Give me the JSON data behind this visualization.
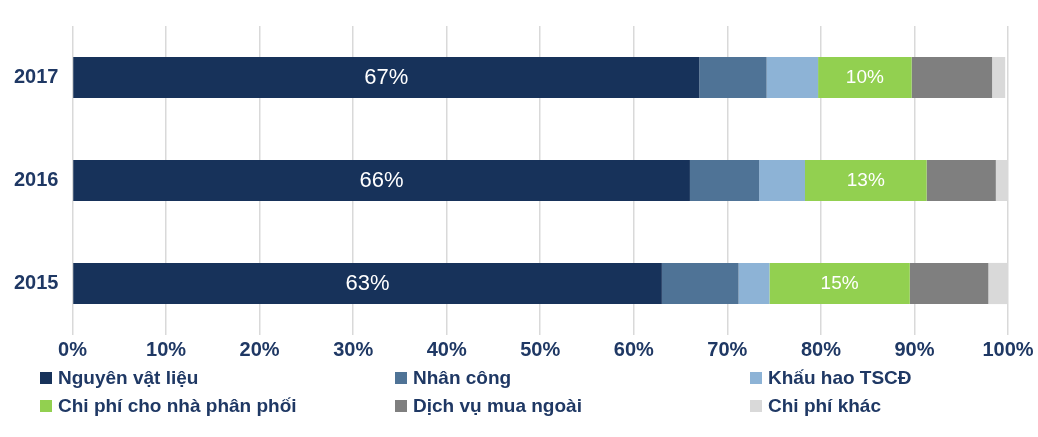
{
  "chart_data": {
    "type": "bar",
    "orientation": "horizontal",
    "stacked": true,
    "categories": [
      "2017",
      "2016",
      "2015"
    ],
    "series": [
      {
        "name": "Nguyên vật liệu",
        "color": "#17325a",
        "values": [
          67,
          66,
          63
        ],
        "value_labels": [
          "67%",
          "66%",
          "63%"
        ]
      },
      {
        "name": "Nhân công",
        "color": "#4f7396",
        "values": [
          7.2,
          7.4,
          8.2
        ]
      },
      {
        "name": "Khấu hao TSCĐ",
        "color": "#8db3d6",
        "values": [
          5.5,
          4.9,
          3.3
        ]
      },
      {
        "name": "Chi phí cho nhà phân phối",
        "color": "#92d050",
        "values": [
          10,
          13,
          15
        ],
        "value_labels": [
          "10%",
          "13%",
          "15%"
        ]
      },
      {
        "name": "Dịch vụ mua ngoài",
        "color": "#7f7f7f",
        "values": [
          8.6,
          7.4,
          8.4
        ]
      },
      {
        "name": "Chi phí khác",
        "color": "#d9d9d9",
        "values": [
          1.4,
          1.3,
          2.1
        ]
      }
    ],
    "xlim": [
      0,
      100
    ],
    "xticks": [
      {
        "value": 0,
        "label": "0%"
      },
      {
        "value": 10,
        "label": "10%"
      },
      {
        "value": 20,
        "label": "20%"
      },
      {
        "value": 30,
        "label": "30%"
      },
      {
        "value": 40,
        "label": "40%"
      },
      {
        "value": 50,
        "label": "50%"
      },
      {
        "value": 60,
        "label": "60%"
      },
      {
        "value": 70,
        "label": "70%"
      },
      {
        "value": 80,
        "label": "80%"
      },
      {
        "value": 90,
        "label": "90%"
      },
      {
        "value": 100,
        "label": "100%"
      }
    ],
    "grid": "x",
    "legend": "bottom"
  }
}
